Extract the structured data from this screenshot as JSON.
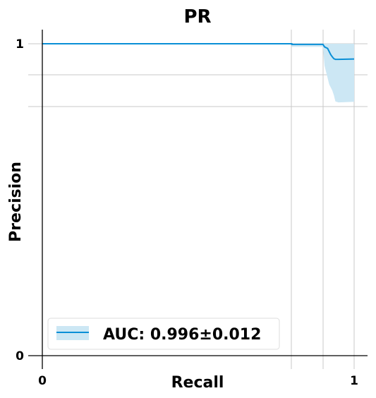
{
  "chart_data": {
    "type": "line",
    "title": "PR",
    "xlabel": "Recall",
    "ylabel": "Precision",
    "xlim": [
      0,
      1
    ],
    "ylim": [
      0,
      1
    ],
    "x_ticks": [
      0,
      1
    ],
    "x_tick_labels": [
      "0",
      "1"
    ],
    "y_ticks": [
      0,
      1
    ],
    "y_tick_labels": [
      "0",
      "1"
    ],
    "grid": true,
    "legend_position": "bottom-left",
    "series": [
      {
        "name": "AUC: 0.996±0.012",
        "color": "#0a8fd6",
        "band_color": "#cce7f4",
        "x": [
          0,
          0.8,
          0.8,
          0.9,
          0.905,
          0.915,
          0.92,
          0.925,
          0.93,
          0.935,
          0.94,
          0.95,
          1.0
        ],
        "y": [
          1.0,
          1.0,
          0.998,
          0.998,
          0.99,
          0.985,
          0.975,
          0.965,
          0.958,
          0.952,
          0.95,
          0.95,
          0.951
        ],
        "y_upper": [
          1.0,
          1.0,
          1.0,
          1.0,
          1.0,
          1.0,
          1.0,
          1.0,
          1.0,
          1.0,
          1.0,
          1.0,
          1.0
        ],
        "y_lower": [
          1.0,
          1.0,
          0.99,
          0.99,
          0.93,
          0.89,
          0.87,
          0.86,
          0.85,
          0.835,
          0.815,
          0.812,
          0.814
        ]
      }
    ]
  }
}
